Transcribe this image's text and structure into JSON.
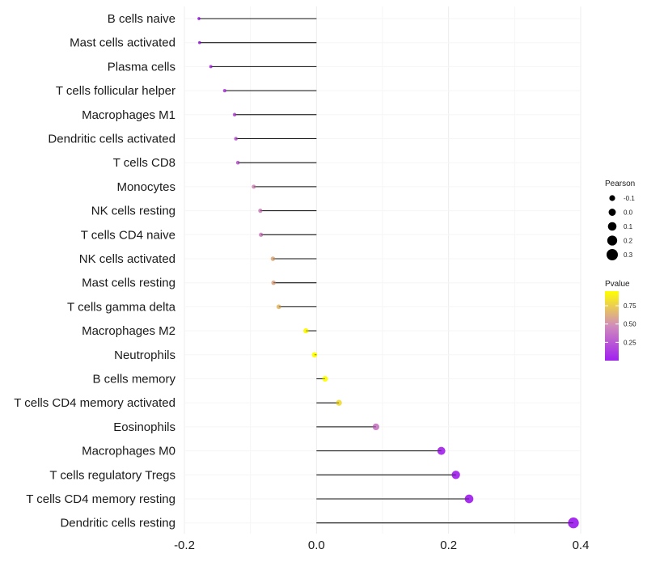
{
  "chart_data": {
    "type": "lollipop",
    "title": "",
    "xlabel": "",
    "ylabel": "",
    "xlim": [
      -0.2,
      0.4
    ],
    "x_ticks": [
      -0.2,
      0.0,
      0.2,
      0.4
    ],
    "x_tick_labels": [
      "-0.2",
      "0.0",
      "0.2",
      "0.4"
    ],
    "grid": true,
    "legend_position": "right",
    "categories": [
      "B cells naive",
      "Mast cells activated",
      "Plasma cells",
      "T cells follicular helper",
      "Macrophages M1",
      "Dendritic cells activated",
      "T cells CD8",
      "Monocytes",
      "NK cells resting",
      "T cells CD4 naive",
      "NK cells activated",
      "Mast cells resting",
      "T cells gamma delta",
      "Macrophages M2",
      "Neutrophils",
      "B cells memory",
      "T cells CD4 memory activated",
      "Eosinophils",
      "Macrophages M0",
      "T cells regulatory  Tregs",
      "T cells CD4 memory resting",
      "Dendritic cells resting"
    ],
    "pearson": [
      -0.178,
      -0.177,
      -0.16,
      -0.139,
      -0.124,
      -0.122,
      -0.119,
      -0.095,
      -0.085,
      -0.084,
      -0.066,
      -0.065,
      -0.057,
      -0.016,
      -0.003,
      0.013,
      0.034,
      0.09,
      0.189,
      0.211,
      0.231,
      0.389
    ],
    "pvalue": [
      0.02,
      0.03,
      0.12,
      0.18,
      0.25,
      0.28,
      0.3,
      0.48,
      0.45,
      0.44,
      0.62,
      0.6,
      0.67,
      0.93,
      0.98,
      0.95,
      0.8,
      0.4,
      0.05,
      0.03,
      0.02,
      0.001
    ],
    "size_legend": {
      "title": "Pearson",
      "labels": [
        "-0.1",
        "0.0",
        "0.1",
        "0.2",
        "0.3"
      ],
      "values": [
        -0.1,
        0.0,
        0.1,
        0.2,
        0.3
      ]
    },
    "color_legend": {
      "title": "Pvalue",
      "labels": [
        "0.75",
        "0.50",
        "0.25"
      ],
      "values": [
        0.75,
        0.5,
        0.25
      ],
      "range": [
        0,
        0.95
      ],
      "low_color": "#a020f0",
      "mid_color": "#d08cbb",
      "high_color": "#ffff00"
    }
  }
}
